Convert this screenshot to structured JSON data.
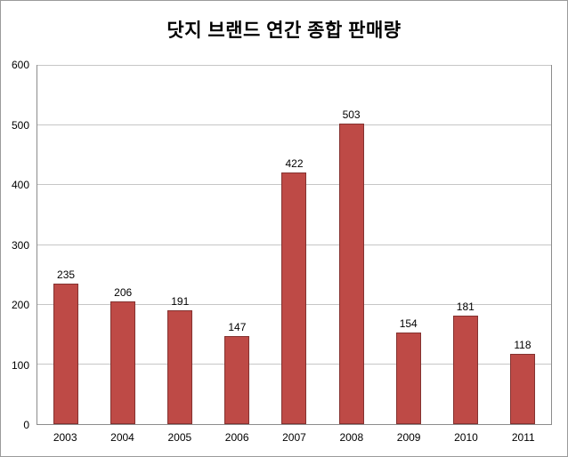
{
  "chart_data": {
    "type": "bar",
    "title": "닷지 브랜드 연간 종합 판매량",
    "categories": [
      "2003",
      "2004",
      "2005",
      "2006",
      "2007",
      "2008",
      "2009",
      "2010",
      "2011"
    ],
    "values": [
      235,
      206,
      191,
      147,
      422,
      503,
      154,
      181,
      118
    ],
    "xlabel": "",
    "ylabel": "",
    "ylim": [
      0,
      600
    ],
    "ytick_step": 100,
    "grid": true,
    "legend": "none",
    "bar_color": "#be4a46",
    "bar_border_color": "#843230",
    "gridline_color": "#c6c6c6"
  }
}
